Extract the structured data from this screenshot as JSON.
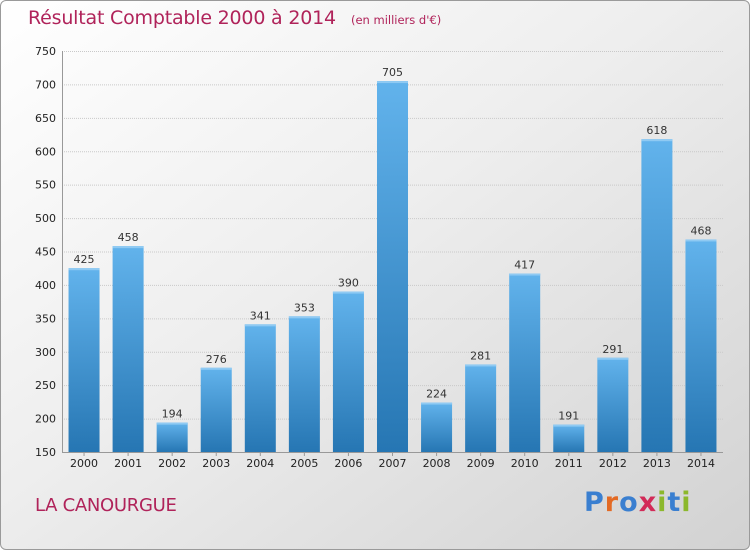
{
  "chart_data": {
    "type": "bar",
    "title": "Résultat Comptable 2000 à 2014",
    "subtitle": "(en milliers d'€)",
    "categories": [
      "2000",
      "2001",
      "2002",
      "2003",
      "2004",
      "2005",
      "2006",
      "2007",
      "2008",
      "2009",
      "2010",
      "2011",
      "2012",
      "2013",
      "2014"
    ],
    "values": [
      425,
      458,
      194,
      276,
      341,
      353,
      390,
      705,
      224,
      281,
      417,
      191,
      291,
      618,
      468
    ],
    "ylim": [
      150,
      750
    ],
    "yticks": [
      150,
      200,
      250,
      300,
      350,
      400,
      450,
      500,
      550,
      600,
      650,
      700,
      750
    ],
    "grid": true,
    "xlabel": "",
    "ylabel": ""
  },
  "footer": {
    "commune": "LA CANOURGUE",
    "logo": "Proxiti"
  },
  "colors": {
    "title": "#b0235a",
    "bar_top": "#62b3ec",
    "bar_bottom": "#2676b3"
  }
}
